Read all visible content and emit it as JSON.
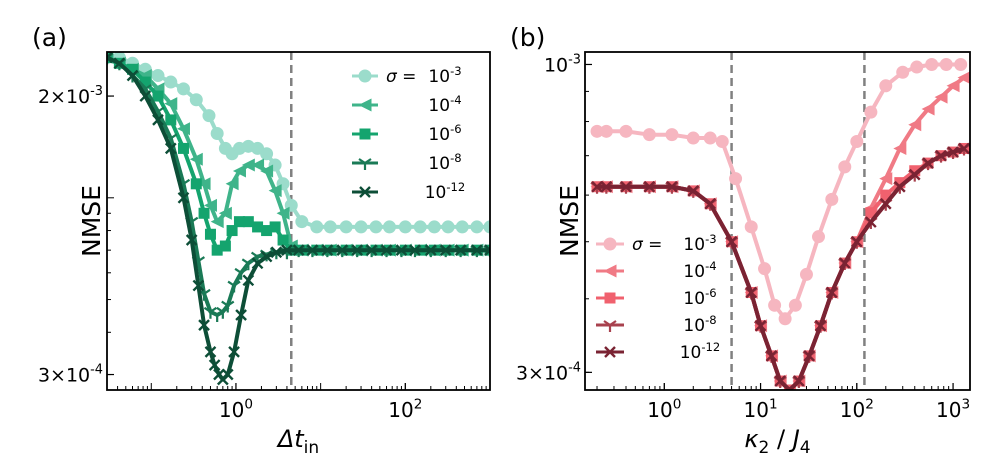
{
  "chart_data": [
    {
      "type": "line",
      "panel_label": "(a)",
      "ylabel": "NMSE",
      "xlabel_main": "Δt",
      "xlabel_sub": "in",
      "xscale": "log",
      "yscale": "log",
      "xlim": [
        0.03,
        1000
      ],
      "ylim": [
        0.00027,
        0.0027
      ],
      "x_ticks": [
        {
          "value": 1,
          "base": "10",
          "exp": "0"
        },
        {
          "value": 100,
          "base": "10",
          "exp": "2"
        }
      ],
      "y_ticks": [
        {
          "value": 0.002,
          "base": "2×10",
          "exp": "-3"
        },
        {
          "value": 0.0003,
          "base": "3×10",
          "exp": "-4"
        }
      ],
      "vlines": [
        4.5
      ],
      "legend": {
        "position": "top-right",
        "prefix": "σ = "
      },
      "series": [
        {
          "name": "10-3",
          "base": "10",
          "exp": "-3",
          "color": "#9bdccb",
          "marker": "circle",
          "x": [
            0.03,
            0.042,
            0.06,
            0.085,
            0.12,
            0.17,
            0.24,
            0.34,
            0.48,
            0.6,
            0.75,
            0.9,
            1.1,
            1.4,
            1.8,
            2.3,
            2.9,
            3.6,
            4.5,
            6,
            9,
            13,
            20,
            30,
            45,
            65,
            100,
            150,
            220,
            320,
            470,
            700,
            1000
          ],
          "y": [
            0.0026,
            0.0026,
            0.0025,
            0.0024,
            0.0023,
            0.0022,
            0.0021,
            0.00195,
            0.00175,
            0.00155,
            0.0014,
            0.00135,
            0.0014,
            0.00142,
            0.0014,
            0.00135,
            0.00125,
            0.0011,
            0.00095,
            0.00085,
            0.00082,
            0.00082,
            0.00082,
            0.00082,
            0.00082,
            0.00082,
            0.00082,
            0.00082,
            0.00082,
            0.00082,
            0.00082,
            0.00082,
            0.00082
          ]
        },
        {
          "name": "10-4",
          "base": "10",
          "exp": "-4",
          "color": "#3fb48a",
          "marker": "tri-left",
          "x": [
            0.03,
            0.042,
            0.06,
            0.085,
            0.12,
            0.17,
            0.24,
            0.34,
            0.42,
            0.5,
            0.6,
            0.75,
            0.9,
            1.1,
            1.4,
            1.8,
            2.3,
            2.9,
            3.6,
            4.5,
            6,
            9,
            13,
            20,
            30,
            45,
            65,
            100,
            150,
            220,
            320,
            470,
            700,
            1000
          ],
          "y": [
            0.0026,
            0.0025,
            0.0024,
            0.0023,
            0.0021,
            0.0019,
            0.0016,
            0.0013,
            0.0011,
            0.00095,
            0.00085,
            0.0009,
            0.0011,
            0.0012,
            0.00125,
            0.00125,
            0.0012,
            0.00105,
            0.0009,
            0.00072,
            0.0007,
            0.0007,
            0.0007,
            0.0007,
            0.0007,
            0.0007,
            0.0007,
            0.0007,
            0.0007,
            0.0007,
            0.0007,
            0.0007,
            0.0007,
            0.0007
          ]
        },
        {
          "name": "10-6",
          "base": "10",
          "exp": "-6",
          "color": "#14a46e",
          "marker": "square",
          "x": [
            0.03,
            0.042,
            0.06,
            0.085,
            0.12,
            0.17,
            0.24,
            0.34,
            0.42,
            0.5,
            0.6,
            0.75,
            0.9,
            1.1,
            1.4,
            1.8,
            2.3,
            2.9,
            3.6,
            4.5,
            6,
            9,
            13,
            20,
            30,
            45,
            65,
            100,
            150,
            220,
            320,
            470,
            700,
            1000
          ],
          "y": [
            0.0026,
            0.0025,
            0.0024,
            0.0022,
            0.002,
            0.0017,
            0.0014,
            0.0011,
            0.0009,
            0.00078,
            0.0007,
            0.00072,
            0.0008,
            0.00085,
            0.00085,
            0.00082,
            0.0008,
            0.00082,
            0.00075,
            0.0007,
            0.0007,
            0.0007,
            0.0007,
            0.0007,
            0.0007,
            0.0007,
            0.0007,
            0.0007,
            0.0007,
            0.0007,
            0.0007,
            0.0007,
            0.0007,
            0.0007
          ]
        },
        {
          "name": "10-8",
          "base": "10",
          "exp": "-8",
          "color": "#1a7a56",
          "marker": "tri-down",
          "x": [
            0.03,
            0.042,
            0.06,
            0.085,
            0.12,
            0.17,
            0.24,
            0.3,
            0.36,
            0.42,
            0.5,
            0.6,
            0.7,
            0.8,
            0.95,
            1.15,
            1.4,
            1.8,
            2.3,
            3.0,
            4.0,
            5.5,
            8,
            12,
            18,
            27,
            40,
            60,
            90,
            130,
            200,
            300,
            450,
            700,
            1000
          ],
          "y": [
            0.0026,
            0.0025,
            0.0023,
            0.0021,
            0.0018,
            0.0015,
            0.0011,
            0.00085,
            0.00065,
            0.00052,
            0.00046,
            0.00045,
            0.00046,
            0.00048,
            0.00055,
            0.0006,
            0.00064,
            0.00067,
            0.00068,
            0.00069,
            0.00069,
            0.0007,
            0.0007,
            0.0007,
            0.0007,
            0.0007,
            0.0007,
            0.0007,
            0.0007,
            0.0007,
            0.0007,
            0.0007,
            0.0007,
            0.0007,
            0.0007
          ]
        },
        {
          "name": "10-12",
          "base": "10",
          "exp": "-12",
          "color": "#0d4e37",
          "marker": "x",
          "x": [
            0.03,
            0.042,
            0.06,
            0.085,
            0.12,
            0.17,
            0.24,
            0.3,
            0.36,
            0.42,
            0.5,
            0.56,
            0.63,
            0.7,
            0.8,
            0.95,
            1.15,
            1.4,
            1.8,
            2.3,
            3.0,
            4.0,
            5.5,
            8,
            12,
            18,
            27,
            40,
            60,
            90,
            130,
            200,
            300,
            450,
            700,
            1000
          ],
          "y": [
            0.0026,
            0.0025,
            0.0023,
            0.002,
            0.0017,
            0.0014,
            0.001,
            0.00075,
            0.00055,
            0.00042,
            0.00035,
            0.00032,
            0.0003,
            0.00029,
            0.0003,
            0.00035,
            0.00045,
            0.00057,
            0.00064,
            0.00067,
            0.00069,
            0.0007,
            0.0007,
            0.0007,
            0.0007,
            0.0007,
            0.0007,
            0.0007,
            0.0007,
            0.0007,
            0.0007,
            0.0007,
            0.0007,
            0.0007,
            0.0007,
            0.0007
          ]
        }
      ]
    },
    {
      "type": "line",
      "panel_label": "(b)",
      "ylabel": "NMSE",
      "xlabel_main": "κ",
      "xlabel_sub": "2",
      "xlabel_tail": " / ",
      "xlabel_main2": "J",
      "xlabel_sub2": "4",
      "xscale": "log",
      "yscale": "log",
      "xlim": [
        0.15,
        1500
      ],
      "ylim": [
        0.00028,
        0.00105
      ],
      "x_ticks": [
        {
          "value": 1,
          "base": "10",
          "exp": "0"
        },
        {
          "value": 10,
          "base": "10",
          "exp": "1"
        },
        {
          "value": 100,
          "base": "10",
          "exp": "2"
        },
        {
          "value": 1000,
          "base": "10",
          "exp": "3"
        }
      ],
      "y_ticks": [
        {
          "value": 0.001,
          "base": "10",
          "exp": "-3"
        },
        {
          "value": 0.0003,
          "base": "3×10",
          "exp": "-4"
        }
      ],
      "vlines": [
        5,
        120
      ],
      "legend": {
        "position": "center-left",
        "prefix": "σ = "
      },
      "series": [
        {
          "name": "10-3",
          "base": "10",
          "exp": "-3",
          "color": "#f6b6c0",
          "marker": "circle",
          "x": [
            0.2,
            0.25,
            0.4,
            0.7,
            1.2,
            2,
            3,
            4,
            5.5,
            8,
            11,
            14,
            18,
            23,
            30,
            40,
            55,
            75,
            100,
            140,
            200,
            300,
            420,
            600,
            850,
            1200
          ],
          "y": [
            0.00077,
            0.00077,
            0.00077,
            0.00076,
            0.00076,
            0.00075,
            0.00075,
            0.00074,
            0.00064,
            0.00053,
            0.00045,
            0.00039,
            0.00037,
            0.00039,
            0.00044,
            0.00051,
            0.00059,
            0.00067,
            0.00074,
            0.00083,
            0.00092,
            0.00097,
            0.00099,
            0.001,
            0.001,
            0.001
          ]
        },
        {
          "name": "10-4",
          "base": "10",
          "exp": "-4",
          "color": "#f07a85",
          "marker": "tri-left",
          "x": [
            0.2,
            0.25,
            0.4,
            0.7,
            1.2,
            2,
            3,
            5,
            8,
            10,
            13,
            16,
            20,
            25,
            32,
            42,
            55,
            75,
            100,
            140,
            200,
            280,
            400,
            550,
            750,
            1000,
            1300
          ],
          "y": [
            0.00062,
            0.00062,
            0.00062,
            0.00062,
            0.00062,
            0.00061,
            0.00058,
            0.0005,
            0.00041,
            0.00036,
            0.00032,
            0.00029,
            0.00028,
            0.00029,
            0.00032,
            0.00036,
            0.00041,
            0.00046,
            0.0005,
            0.00057,
            0.00064,
            0.00072,
            0.00079,
            0.00084,
            0.00088,
            0.00092,
            0.00095
          ]
        },
        {
          "name": "10-6",
          "base": "10",
          "exp": "-6",
          "color": "#f0616e",
          "marker": "square",
          "x": [
            0.2,
            0.25,
            0.4,
            0.7,
            1.2,
            2,
            3,
            5,
            8,
            10,
            13,
            16,
            20,
            25,
            32,
            42,
            55,
            75,
            100,
            140,
            200,
            280,
            400,
            550,
            750,
            1000,
            1300
          ],
          "y": [
            0.00062,
            0.00062,
            0.00062,
            0.00062,
            0.00062,
            0.00061,
            0.00058,
            0.0005,
            0.00041,
            0.00036,
            0.00032,
            0.00029,
            0.00028,
            0.00029,
            0.00032,
            0.00036,
            0.00041,
            0.00046,
            0.0005,
            0.00056,
            0.0006,
            0.00063,
            0.00066,
            0.00068,
            0.0007,
            0.00071,
            0.00072
          ]
        },
        {
          "name": "10-8",
          "base": "10",
          "exp": "-8",
          "color": "#a8414e",
          "marker": "tri-down",
          "x": [
            0.2,
            0.25,
            0.4,
            0.7,
            1.2,
            2,
            3,
            5,
            8,
            10,
            13,
            16,
            20,
            25,
            32,
            42,
            55,
            75,
            100,
            140,
            200,
            280,
            400,
            550,
            750,
            1000,
            1300
          ],
          "y": [
            0.00062,
            0.00062,
            0.00062,
            0.00062,
            0.00062,
            0.00061,
            0.00058,
            0.0005,
            0.00041,
            0.00036,
            0.00032,
            0.00029,
            0.00028,
            0.00029,
            0.00032,
            0.00036,
            0.00041,
            0.00046,
            0.0005,
            0.00054,
            0.00058,
            0.00062,
            0.00065,
            0.00068,
            0.0007,
            0.00071,
            0.00072
          ]
        },
        {
          "name": "10-12",
          "base": "10",
          "exp": "-12",
          "color": "#7a2333",
          "marker": "x",
          "x": [
            0.2,
            0.25,
            0.4,
            0.7,
            1.2,
            2,
            3,
            5,
            8,
            10,
            13,
            16,
            20,
            25,
            32,
            42,
            55,
            75,
            100,
            140,
            200,
            280,
            400,
            550,
            750,
            1000,
            1300
          ],
          "y": [
            0.00062,
            0.00062,
            0.00062,
            0.00062,
            0.00062,
            0.00061,
            0.00058,
            0.0005,
            0.00041,
            0.00036,
            0.00032,
            0.00029,
            0.00028,
            0.00029,
            0.00032,
            0.00036,
            0.00041,
            0.00046,
            0.0005,
            0.00054,
            0.00058,
            0.00062,
            0.00065,
            0.00068,
            0.0007,
            0.00071,
            0.00072
          ]
        }
      ]
    }
  ]
}
